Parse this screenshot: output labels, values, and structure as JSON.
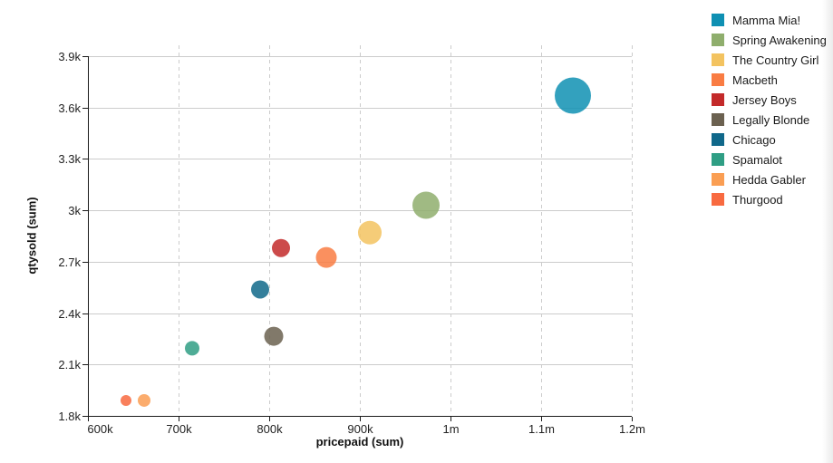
{
  "chart_data": {
    "type": "scatter",
    "title": "",
    "xlabel": "pricepaid (sum)",
    "ylabel": "qtysold (sum)",
    "xlim": [
      600000,
      1200000
    ],
    "ylim": [
      1800,
      3900
    ],
    "x_ticks": [
      {
        "value": 600000,
        "label": "600k"
      },
      {
        "value": 700000,
        "label": "700k"
      },
      {
        "value": 800000,
        "label": "800k"
      },
      {
        "value": 900000,
        "label": "900k"
      },
      {
        "value": 1000000,
        "label": "1m"
      },
      {
        "value": 1100000,
        "label": "1.1m"
      },
      {
        "value": 1200000,
        "label": "1.2m"
      }
    ],
    "y_ticks": [
      {
        "value": 1800,
        "label": "1.8k"
      },
      {
        "value": 2100,
        "label": "2.1k"
      },
      {
        "value": 2400,
        "label": "2.4k"
      },
      {
        "value": 2700,
        "label": "2.7k"
      },
      {
        "value": 3000,
        "label": "3k"
      },
      {
        "value": 3300,
        "label": "3.3k"
      },
      {
        "value": 3600,
        "label": "3.6k"
      },
      {
        "value": 3900,
        "label": "3.9k"
      }
    ],
    "grid": {
      "horizontal": "solid",
      "vertical": "dashed"
    },
    "legend_position": "right",
    "series": [
      {
        "name": "Mamma Mia!",
        "color": "#0f90b3",
        "pricepaid": 1135000,
        "qtysold": 3670,
        "radius_px": 20
      },
      {
        "name": "Spring Awakening",
        "color": "#8fae6d",
        "pricepaid": 973000,
        "qtysold": 3030,
        "radius_px": 15
      },
      {
        "name": "The Country Girl",
        "color": "#f3c360",
        "pricepaid": 911000,
        "qtysold": 2870,
        "radius_px": 13
      },
      {
        "name": "Macbeth",
        "color": "#f97c43",
        "pricepaid": 863000,
        "qtysold": 2725,
        "radius_px": 11.5
      },
      {
        "name": "Jersey Boys",
        "color": "#c32a2a",
        "pricepaid": 813000,
        "qtysold": 2780,
        "radius_px": 10
      },
      {
        "name": "Legally Blonde",
        "color": "#6b6150",
        "pricepaid": 805000,
        "qtysold": 2265,
        "radius_px": 10.5
      },
      {
        "name": "Chicago",
        "color": "#10688a",
        "pricepaid": 790000,
        "qtysold": 2538,
        "radius_px": 10
      },
      {
        "name": "Spamalot",
        "color": "#2f9e84",
        "pricepaid": 715000,
        "qtysold": 2195,
        "radius_px": 8
      },
      {
        "name": "Hedda Gabler",
        "color": "#fa9e53",
        "pricepaid": 662000,
        "qtysold": 1890,
        "radius_px": 7
      },
      {
        "name": "Thurgood",
        "color": "#f86a40",
        "pricepaid": 642000,
        "qtysold": 1890,
        "radius_px": 6
      }
    ]
  },
  "style": {
    "axis_color": "#1a1a1a",
    "grid_color": "#cccccc",
    "tick_label_color": "#222222",
    "bubble_opacity": 0.85
  }
}
